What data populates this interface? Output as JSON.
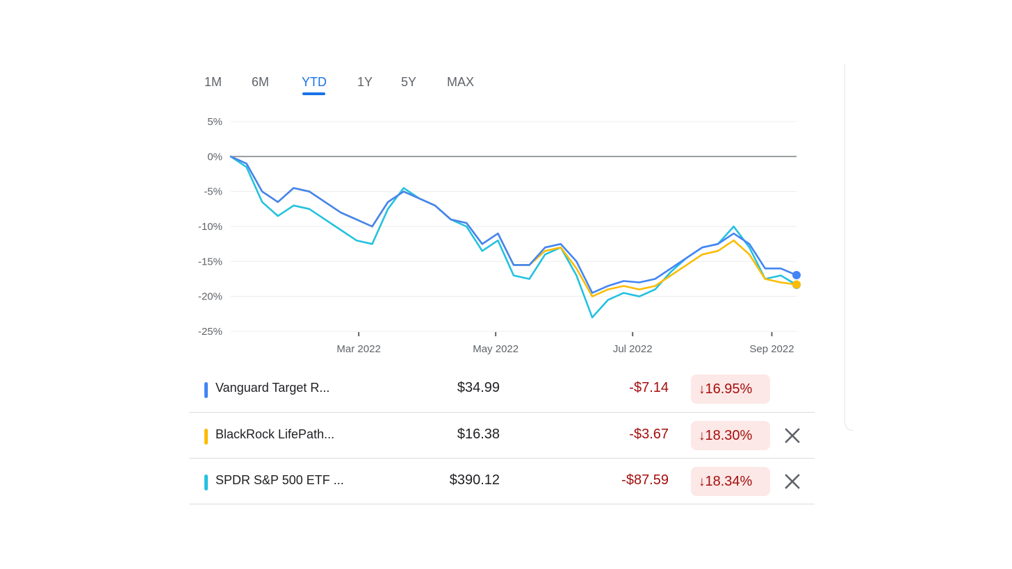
{
  "tabs": [
    {
      "label": "1M",
      "active": false
    },
    {
      "label": "6M",
      "active": false
    },
    {
      "label": "YTD",
      "active": true
    },
    {
      "label": "1Y",
      "active": false
    },
    {
      "label": "5Y",
      "active": false
    },
    {
      "label": "MAX",
      "active": false
    }
  ],
  "colors": {
    "vanguard": "#4285f4",
    "blackrock": "#fbbc04",
    "spdr": "#24c1e0",
    "accent": "#1a73e8",
    "negative": "#a50e0e",
    "negative_bg": "#fce8e6"
  },
  "holdings": [
    {
      "name": "Vanguard Target R...",
      "price": "$34.99",
      "change": "-$7.14",
      "percent": "16.95%",
      "color": "#4285f4",
      "removable": false
    },
    {
      "name": "BlackRock LifePath...",
      "price": "$16.38",
      "change": "-$3.67",
      "percent": "18.30%",
      "color": "#fbbc04",
      "removable": true
    },
    {
      "name": "SPDR S&P 500 ETF ...",
      "price": "$390.12",
      "change": "-$87.59",
      "percent": "18.34%",
      "color": "#24c1e0",
      "removable": true
    }
  ],
  "chart_data": {
    "type": "line",
    "ylim": [
      -25,
      5
    ],
    "y_ticks": [
      "5%",
      "0%",
      "-5%",
      "-10%",
      "-15%",
      "-20%",
      "-25%"
    ],
    "y_tick_values": [
      5,
      0,
      -5,
      -10,
      -15,
      -20,
      -25
    ],
    "x_ticks": [
      "Mar 2022",
      "May 2022",
      "Jul 2022",
      "Sep 2022"
    ],
    "x_tick_dates": [
      "2022-03-01",
      "2022-05-01",
      "2022-07-01",
      "2022-09-01"
    ],
    "xlim": [
      "2022-01-03",
      "2022-09-12"
    ],
    "grid": true,
    "baseline": 0,
    "x": [
      "2022-01-03",
      "2022-01-10",
      "2022-01-17",
      "2022-01-24",
      "2022-01-31",
      "2022-02-07",
      "2022-02-14",
      "2022-02-21",
      "2022-02-28",
      "2022-03-07",
      "2022-03-14",
      "2022-03-21",
      "2022-03-28",
      "2022-04-04",
      "2022-04-11",
      "2022-04-18",
      "2022-04-25",
      "2022-05-02",
      "2022-05-09",
      "2022-05-16",
      "2022-05-23",
      "2022-05-30",
      "2022-06-06",
      "2022-06-13",
      "2022-06-20",
      "2022-06-27",
      "2022-07-04",
      "2022-07-11",
      "2022-07-18",
      "2022-07-25",
      "2022-08-01",
      "2022-08-08",
      "2022-08-15",
      "2022-08-22",
      "2022-08-29",
      "2022-09-05",
      "2022-09-12"
    ],
    "series": [
      {
        "name": "Vanguard Target R...",
        "values": [
          0,
          -1,
          -5,
          -6.5,
          -4.5,
          -5,
          -6.5,
          -8,
          -9,
          -10,
          -6.5,
          -5,
          -6,
          -7,
          -9,
          -9.5,
          -12.5,
          -11,
          -15.5,
          -15.5,
          -13,
          -12.5,
          -15,
          -19.5,
          -18.5,
          -17.8,
          -18,
          -17.5,
          -16,
          -14.5,
          -13,
          -12.5,
          -11,
          -12.5,
          -16,
          -16,
          -16.95
        ]
      },
      {
        "name": "BlackRock LifePath...",
        "values": [
          0,
          -1,
          -5,
          -6.5,
          -4.5,
          -5,
          -6.5,
          -8,
          -9,
          -10,
          -6.5,
          -5,
          -6,
          -7,
          -9,
          -9.5,
          -12.5,
          -11,
          -15.5,
          -15.5,
          -13.5,
          -13,
          -16,
          -20,
          -19,
          -18.5,
          -19,
          -18.5,
          -17,
          -15.5,
          -14,
          -13.5,
          -12,
          -14,
          -17.5,
          -18,
          -18.3
        ]
      },
      {
        "name": "SPDR S&P 500 ETF ...",
        "values": [
          0,
          -1.5,
          -6.5,
          -8.5,
          -7,
          -7.5,
          -9,
          -10.5,
          -12,
          -12.5,
          -7.5,
          -4.5,
          -6,
          -7,
          -9,
          -10,
          -13.5,
          -12,
          -17,
          -17.5,
          -14,
          -13,
          -17,
          -23,
          -20.5,
          -19.5,
          -20,
          -19,
          -16.5,
          -14.5,
          -13,
          -12.5,
          -10,
          -13,
          -17.5,
          -17,
          -18.34
        ]
      }
    ]
  }
}
